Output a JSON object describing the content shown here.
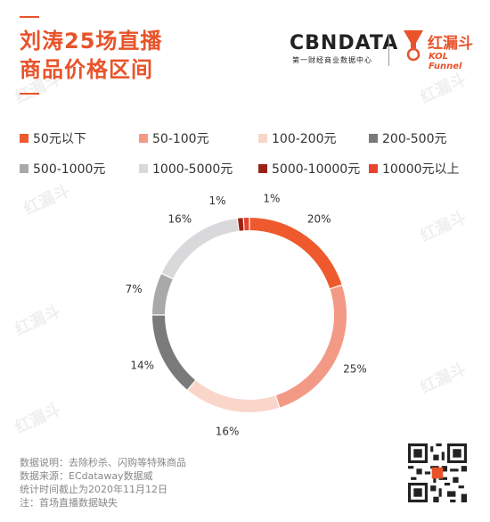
{
  "header": {
    "title_line1": "刘涛25场直播",
    "title_line2": "商品价格区间",
    "cbndata_logo": "CBNDATA",
    "cbndata_sub": "第一财经商业数据中心",
    "kol_logo_cn": "红漏斗",
    "kol_logo_en": "KOL Funnel"
  },
  "colors": {
    "accent": "#e8532a"
  },
  "chart_data": {
    "type": "pie",
    "style": "donut",
    "categories": [
      "50元以下",
      "50-100元",
      "100-200元",
      "200-500元",
      "500-1000元",
      "1000-5000元",
      "5000-10000元",
      "10000元以上"
    ],
    "values": [
      20,
      25,
      16,
      14,
      7,
      16,
      1,
      1
    ],
    "labels": [
      "20%",
      "25%",
      "16%",
      "14%",
      "7%",
      "16%",
      "1%",
      "1%"
    ],
    "colors": [
      "#ee5a2d",
      "#f39a86",
      "#f9d6c9",
      "#7a7a7a",
      "#a9a9ab",
      "#d9d9db",
      "#9a2214",
      "#e8432c"
    ],
    "legend_position": "top"
  },
  "footer": {
    "line1": "数据说明：去除秒杀、闪购等特殊商品",
    "line2": "数据来源：ECdataway数据威",
    "line3": "统计时间截止为2020年11月12日",
    "line4": "注：首场直播数据缺失"
  },
  "watermark": {
    "cn": "红漏斗",
    "en": "KOL Funnel"
  }
}
